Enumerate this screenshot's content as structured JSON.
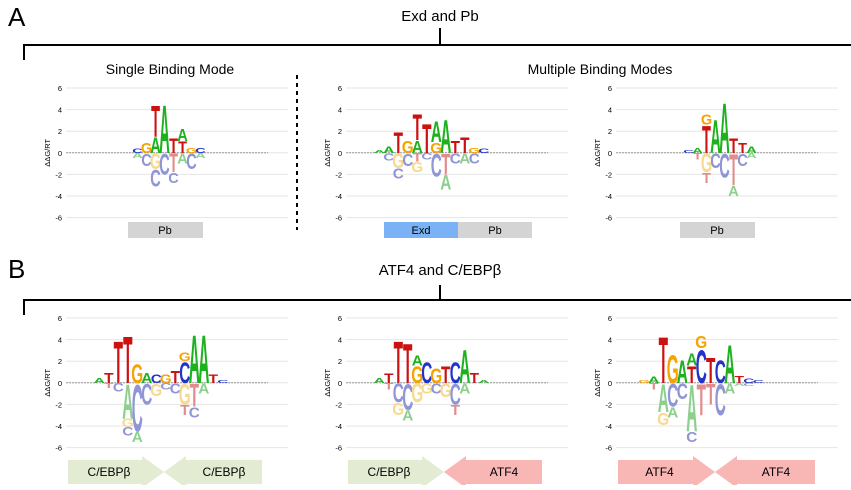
{
  "panels": [
    {
      "letter": "A",
      "title": "Exd and Pb",
      "subtitles": [
        "Single Binding Mode",
        "Multiple Binding Modes"
      ],
      "axis_label": "ΔΔG/RT",
      "y_ticks": [
        "6",
        "4",
        "2",
        "0",
        "-2",
        "-4",
        "-6"
      ],
      "logos": [
        {
          "id": "a1",
          "labels": [
            "Pb"
          ]
        },
        {
          "id": "a2",
          "labels": [
            "Exd",
            "Pb"
          ]
        },
        {
          "id": "a3",
          "labels": [
            "Pb"
          ]
        }
      ]
    },
    {
      "letter": "B",
      "title": "ATF4 and C/EBPβ",
      "axis_label": "ΔΔG/RT",
      "y_ticks": [
        "6",
        "4",
        "2",
        "0",
        "-2",
        "-4",
        "-6"
      ],
      "logos": [
        {
          "id": "b1",
          "labels": [
            "C/EBPβ",
            "C/EBPβ"
          ]
        },
        {
          "id": "b2",
          "labels": [
            "C/EBPβ",
            "ATF4"
          ]
        },
        {
          "id": "b3",
          "labels": [
            "ATF4",
            "ATF4"
          ]
        }
      ]
    }
  ],
  "colors": {
    "A": "#1db21d",
    "C": "#2233cc",
    "G": "#f5a300",
    "T": "#cc1111",
    "A_neg": "#8dcf8d",
    "C_neg": "#8f95d6",
    "G_neg": "#f7d98f",
    "T_neg": "#e28d8d",
    "box_gray": "#d4d4d4",
    "box_blue": "#7ab2f5",
    "arrow_green": "#e3ecd2",
    "arrow_pink": "#f8b6b4"
  }
}
